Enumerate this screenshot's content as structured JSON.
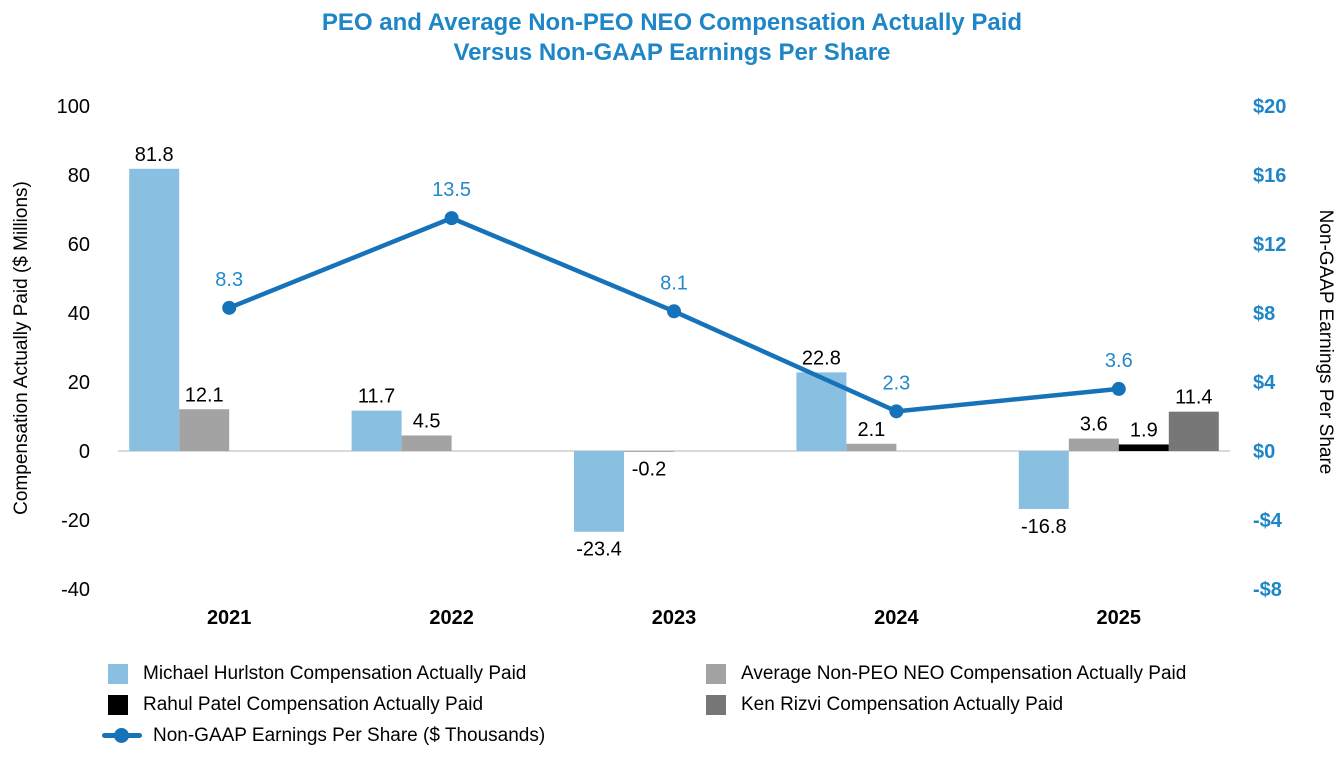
{
  "chart_data": {
    "type": "combo-bar-line",
    "title_lines": [
      "PEO and Average Non-PEO NEO Compensation Actually Paid",
      "Versus Non-GAAP Earnings Per Share"
    ],
    "title_color": "#1e86c6",
    "categories": [
      "2021",
      "2022",
      "2023",
      "2024",
      "2025"
    ],
    "bar_series": [
      {
        "name": "Michael Hurlston Compensation Actually Paid",
        "color": "#89c0e1",
        "values": [
          81.8,
          11.7,
          -23.4,
          22.8,
          -16.8
        ]
      },
      {
        "name": "Average Non-PEO NEO Compensation Actually Paid",
        "color": "#a3a3a3",
        "values": [
          12.1,
          4.5,
          -0.2,
          2.1,
          3.6
        ]
      },
      {
        "name": "Rahul Patel Compensation Actually Paid",
        "color": "#000000",
        "values": [
          null,
          null,
          null,
          null,
          1.9
        ]
      },
      {
        "name": "Ken Rizvi Compensation Actually Paid",
        "color": "#777777",
        "values": [
          null,
          null,
          null,
          null,
          11.4
        ]
      }
    ],
    "line_series": {
      "name": "Non-GAAP Earnings Per Share ($ Thousands)",
      "color": "#1773b9",
      "label_color": "#2389cb",
      "values": [
        8.3,
        13.5,
        8.1,
        2.3,
        3.6
      ]
    },
    "left_axis": {
      "title": "Compensation Actually Paid ($ Millions)",
      "min": -40,
      "max": 100,
      "ticks": [
        {
          "label": "100",
          "value": 100
        },
        {
          "label": "80",
          "value": 80
        },
        {
          "label": "60",
          "value": 60
        },
        {
          "label": "40",
          "value": 40
        },
        {
          "label": "20",
          "value": 20
        },
        {
          "label": "0",
          "value": 0
        },
        {
          "label": "-20",
          "value": -20
        },
        {
          "label": "-40",
          "value": -40
        }
      ]
    },
    "right_axis": {
      "title": "Non-GAAP Earnings Per Share",
      "min": -8,
      "max": 20,
      "tick_color": "#1e86c6",
      "ticks": [
        {
          "label": "$20",
          "value": 20
        },
        {
          "label": "$16",
          "value": 16
        },
        {
          "label": "$12",
          "value": 12
        },
        {
          "label": "$8",
          "value": 8
        },
        {
          "label": "$4",
          "value": 4
        },
        {
          "label": "$0",
          "value": 0
        },
        {
          "label": "-$4",
          "value": -4
        },
        {
          "label": "-$8",
          "value": -8
        }
      ]
    },
    "gridline": {
      "value": 0,
      "color": "#d9d9d9"
    }
  },
  "legend": {
    "columns": [
      [
        {
          "label": "Michael Hurlston Compensation Actually Paid",
          "swatch": "square",
          "color": "#89c0e1"
        },
        {
          "label": "Rahul Patel Compensation Actually Paid",
          "swatch": "square",
          "color": "#000000"
        },
        {
          "label": "Non-GAAP Earnings Per Share ($ Thousands)",
          "swatch": "line",
          "color": "#1773b9"
        }
      ],
      [
        {
          "label": "Average Non-PEO NEO Compensation Actually Paid",
          "swatch": "square",
          "color": "#a3a3a3"
        },
        {
          "label": "Ken Rizvi Compensation Actually Paid",
          "swatch": "square",
          "color": "#777777"
        }
      ]
    ]
  }
}
